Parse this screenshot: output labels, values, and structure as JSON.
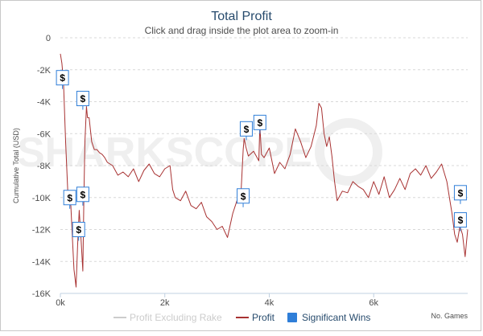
{
  "chart_data": {
    "type": "line",
    "title": "Total Profit",
    "subtitle": "Click and drag inside the plot area to zoom-in",
    "xlabel": "No. Games",
    "ylabel": "Cumulative Total (USD)",
    "xlim": [
      0,
      7800
    ],
    "ylim": [
      -16000,
      0
    ],
    "x_ticks": [
      0,
      2000,
      4000,
      6000
    ],
    "x_tick_labels": [
      "0k",
      "2k",
      "4k",
      "6k"
    ],
    "y_ticks": [
      0,
      -2000,
      -4000,
      -6000,
      -8000,
      -10000,
      -12000,
      -14000,
      -16000
    ],
    "y_tick_labels": [
      "0",
      "-2K",
      "-4K",
      "-6K",
      "-8K",
      "-10K",
      "-12K",
      "-14K",
      "-16K"
    ],
    "grid": "horizontal-dashed",
    "legend": {
      "placement": "bottom-center",
      "items": [
        {
          "label": "Profit Excluding Rake",
          "color": "#cccccc",
          "shape": "line",
          "hidden": true
        },
        {
          "label": "Profit",
          "color": "#a83232",
          "shape": "line"
        },
        {
          "label": "Significant Wins",
          "color": "#2f7ed8",
          "shape": "square"
        }
      ]
    },
    "watermark": "SHARKSCOPE",
    "series": [
      {
        "name": "Profit",
        "color": "#a83232",
        "x": [
          0,
          30,
          60,
          100,
          150,
          200,
          230,
          260,
          300,
          330,
          360,
          400,
          430,
          450,
          470,
          500,
          520,
          550,
          600,
          650,
          700,
          750,
          800,
          850,
          900,
          1000,
          1100,
          1200,
          1300,
          1400,
          1500,
          1600,
          1700,
          1800,
          1900,
          2000,
          2100,
          2150,
          2200,
          2300,
          2400,
          2500,
          2600,
          2700,
          2800,
          2900,
          3000,
          3100,
          3200,
          3300,
          3400,
          3450,
          3500,
          3520,
          3550,
          3600,
          3700,
          3800,
          3820,
          3850,
          3900,
          4000,
          4100,
          4200,
          4300,
          4400,
          4500,
          4600,
          4700,
          4800,
          4900,
          4950,
          5000,
          5050,
          5100,
          5150,
          5200,
          5250,
          5300,
          5400,
          5500,
          5600,
          5700,
          5800,
          5900,
          6000,
          6100,
          6200,
          6300,
          6400,
          6500,
          6600,
          6700,
          6800,
          6900,
          7000,
          7100,
          7200,
          7300,
          7400,
          7500,
          7550,
          7600,
          7650,
          7700,
          7750,
          7800
        ],
        "values": [
          -1000,
          -1600,
          -2800,
          -6500,
          -10200,
          -10500,
          -12500,
          -14500,
          -15600,
          -13000,
          -10800,
          -12800,
          -14600,
          -10000,
          -6500,
          -4300,
          -5000,
          -5000,
          -6500,
          -7000,
          -7000,
          -7200,
          -7300,
          -7500,
          -7800,
          -8000,
          -8600,
          -8400,
          -8700,
          -8200,
          -9000,
          -8300,
          -7900,
          -8500,
          -8700,
          -8200,
          -8000,
          -9500,
          -10000,
          -10200,
          -9600,
          -10500,
          -10700,
          -10300,
          -11200,
          -11500,
          -12000,
          -11800,
          -12500,
          -11000,
          -10000,
          -10300,
          -7000,
          -6300,
          -6800,
          -7400,
          -7100,
          -7700,
          -5500,
          -7300,
          -7500,
          -6900,
          -8500,
          -7800,
          -8200,
          -7300,
          -5700,
          -6500,
          -7500,
          -6800,
          -5500,
          -4100,
          -4400,
          -6000,
          -6800,
          -6200,
          -7400,
          -9000,
          -10200,
          -9600,
          -9700,
          -9000,
          -9300,
          -9500,
          -10000,
          -9000,
          -9800,
          -8700,
          -10000,
          -9500,
          -8800,
          -9500,
          -8500,
          -8200,
          -8600,
          -8000,
          -8800,
          -8400,
          -7900,
          -9000,
          -11000,
          -12300,
          -12800,
          -11800,
          -12300,
          -13700,
          -12000
        ]
      }
    ],
    "significant_wins": [
      {
        "x": 40,
        "y": -2500,
        "label": "$"
      },
      {
        "x": 180,
        "y": -10000,
        "label": "$"
      },
      {
        "x": 350,
        "y": -12000,
        "label": "$"
      },
      {
        "x": 430,
        "y": -9800,
        "label": "$"
      },
      {
        "x": 430,
        "y": -3800,
        "label": "$"
      },
      {
        "x": 3500,
        "y": -9900,
        "label": "$"
      },
      {
        "x": 3560,
        "y": -5700,
        "label": "$"
      },
      {
        "x": 3820,
        "y": -5300,
        "label": "$"
      },
      {
        "x": 7660,
        "y": -11400,
        "label": "$"
      },
      {
        "x": 7660,
        "y": -9700,
        "label": "$"
      }
    ]
  }
}
